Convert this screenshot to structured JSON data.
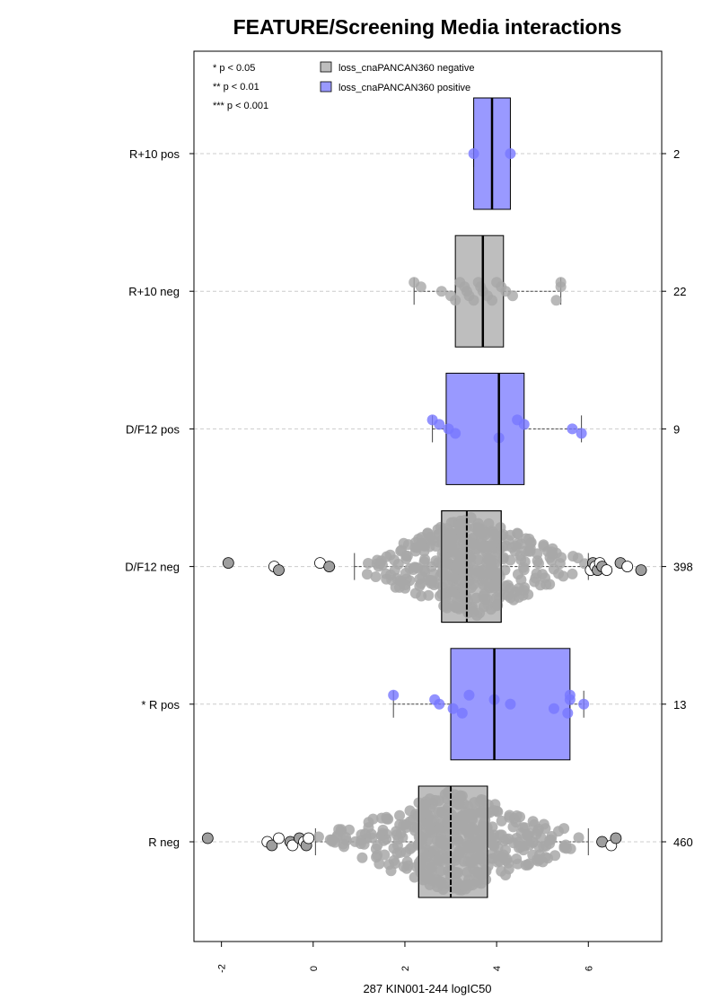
{
  "chart_data": {
    "type": "boxplot",
    "title": "FEATURE/Screening Media interactions",
    "xlabel": "287 KIN001-244 logIC50",
    "xlim": [
      -2.6,
      7.6
    ],
    "xticks": [
      -2,
      0,
      2,
      4,
      6
    ],
    "grid": "dashed horizontal at each group",
    "significance_legend": [
      "* p < 0.05",
      "** p < 0.01",
      "*** p < 0.001"
    ],
    "legend": {
      "position": "top",
      "entries": [
        {
          "label": "loss_cnaPANCAN360 negative",
          "color": "#bebebe"
        },
        {
          "label": "loss_cnaPANCAN360 positive",
          "color": "#9999ff"
        }
      ]
    },
    "colors": {
      "negative_box": "#bebebe",
      "positive_box": "#9999ff",
      "negative_points": "#a8a8a8",
      "positive_points": "#7777ff"
    },
    "groups": [
      {
        "label": "R+10 pos",
        "n": "2",
        "status": "positive",
        "box": {
          "whisker_low": 3.5,
          "q1": 3.5,
          "median": 3.9,
          "q3": 4.3,
          "whisker_high": 4.3
        },
        "points": [
          3.5,
          4.3
        ],
        "outliers": []
      },
      {
        "label": "R+10 neg",
        "n": "22",
        "status": "negative",
        "box": {
          "whisker_low": 2.2,
          "q1": 3.1,
          "median": 3.7,
          "q3": 4.15,
          "whisker_high": 5.4
        },
        "points": [
          2.2,
          2.35,
          2.8,
          3.0,
          3.1,
          3.2,
          3.3,
          3.35,
          3.4,
          3.5,
          3.6,
          3.65,
          3.7,
          3.8,
          3.9,
          4.0,
          4.1,
          4.2,
          4.35,
          5.3,
          5.4,
          5.4
        ],
        "outliers": []
      },
      {
        "label": "D/F12 pos",
        "n": "9",
        "status": "positive",
        "box": {
          "whisker_low": 2.6,
          "q1": 2.9,
          "median": 4.05,
          "q3": 4.6,
          "whisker_high": 5.85
        },
        "points": [
          2.6,
          2.75,
          2.95,
          3.1,
          4.05,
          4.45,
          4.6,
          5.65,
          5.85
        ],
        "outliers": []
      },
      {
        "label": "D/F12 neg",
        "n": "398",
        "status": "negative",
        "box": {
          "whisker_low": 0.9,
          "q1": 2.8,
          "median": 3.35,
          "q3": 4.1,
          "whisker_high": 6.0
        },
        "points_range": [
          0.9,
          6.0
        ],
        "point_count": 380,
        "outliers": [
          -1.85,
          -0.85,
          -0.75,
          0.15,
          0.35,
          6.05,
          6.1,
          6.15,
          6.2,
          6.25,
          6.3,
          6.4,
          6.7,
          6.85,
          7.15
        ]
      },
      {
        "label": "* R pos",
        "n": "13",
        "status": "positive",
        "box": {
          "whisker_low": 1.75,
          "q1": 3.0,
          "median": 3.95,
          "q3": 5.6,
          "whisker_high": 5.9
        },
        "points": [
          1.75,
          2.65,
          2.75,
          3.05,
          3.25,
          3.4,
          3.95,
          4.3,
          5.25,
          5.55,
          5.6,
          5.6,
          5.9
        ],
        "outliers": []
      },
      {
        "label": "R neg",
        "n": "460",
        "status": "negative",
        "box": {
          "whisker_low": 0.05,
          "q1": 2.3,
          "median": 3.0,
          "q3": 3.8,
          "whisker_high": 6.0
        },
        "points_range": [
          0.05,
          6.0
        ],
        "point_count": 440,
        "outliers": [
          -2.3,
          -1.0,
          -0.9,
          -0.75,
          -0.5,
          -0.45,
          -0.3,
          -0.2,
          -0.15,
          -0.1,
          6.3,
          6.5,
          6.6
        ]
      }
    ]
  }
}
